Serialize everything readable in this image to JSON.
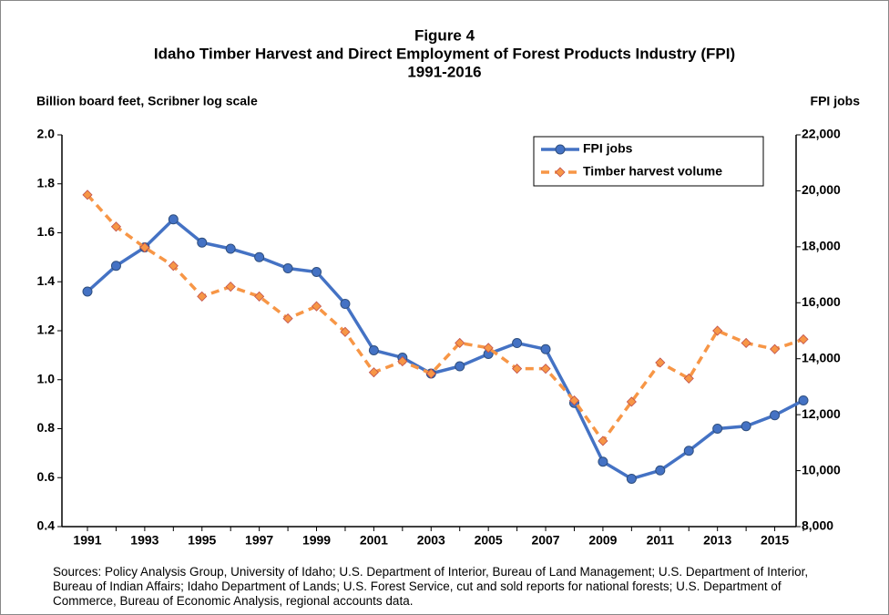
{
  "chart_data": {
    "type": "line",
    "title": "Figure 4",
    "subtitle": "Idaho Timber Harvest and Direct Employment of Forest Products Industry (FPI)",
    "subtitle2": "1991-2016",
    "y_label": "Billion board feet, Scribner log scale",
    "y2_label": "FPI jobs",
    "source": "Sources: Policy Analysis Group, University of Idaho; U.S. Department of Interior, Bureau of Land Management; U.S. Department of Interior, Bureau of Indian Affairs; Idaho Department of Lands; U.S. Forest Service, cut and sold reports for national forests; U.S. Department of Commerce, Bureau of Economic Analysis, regional accounts data.",
    "categories": [
      "1991",
      null,
      "1993",
      null,
      "1995",
      null,
      "1997",
      null,
      "1999",
      null,
      "2001",
      null,
      "2003",
      null,
      "2005",
      null,
      "2007",
      null,
      "2009",
      null,
      "2011",
      null,
      "2013",
      null,
      "2015",
      null
    ],
    "ylim": [
      0.4,
      2.0
    ],
    "yticks": [
      0.4,
      0.6,
      0.8,
      {
        "value": 1.0,
        "label": "1.0"
      },
      1.2,
      1.4,
      1.6,
      1.8,
      {
        "value": 2.0,
        "label": "2.0"
      }
    ],
    "y2lim": [
      8000,
      22000
    ],
    "y2ticks": [
      {
        "value": 8000,
        "label": "8,000"
      },
      {
        "value": 10000,
        "label": "10,000"
      },
      {
        "value": 12000,
        "label": "12,000"
      },
      {
        "value": 14000,
        "label": "14,000"
      },
      {
        "value": 16000,
        "label": "16,000"
      },
      {
        "value": 18000,
        "label": "18,000"
      },
      {
        "value": 20000,
        "label": "20,000"
      },
      {
        "value": 22000,
        "label": "22,000"
      }
    ],
    "legend": "top-right",
    "series": [
      {
        "name": "FPI jobs",
        "color": "#4472c4",
        "axis": "y2",
        "style": "solid",
        "marker": "circle",
        "values": [
          16400,
          17320,
          17980,
          18980,
          18150,
          17930,
          17630,
          17230,
          17100,
          15960,
          14300,
          14040,
          13470,
          13730,
          14170,
          14560,
          14340,
          12420,
          10320,
          9710,
          10010,
          10710,
          11500,
          11590,
          11980,
          12510
        ]
      },
      {
        "name": "Timber harvest volume",
        "color": "#f79646",
        "axis": "y",
        "style": "dashed",
        "marker": "diamond",
        "values": [
          1.755,
          1.625,
          1.54,
          1.465,
          1.34,
          1.38,
          1.34,
          1.25,
          1.3,
          1.195,
          1.03,
          1.075,
          1.025,
          1.15,
          1.13,
          1.045,
          1.045,
          0.915,
          0.75,
          0.91,
          1.07,
          1.005,
          1.2,
          1.15,
          1.125,
          1.165
        ]
      }
    ]
  }
}
